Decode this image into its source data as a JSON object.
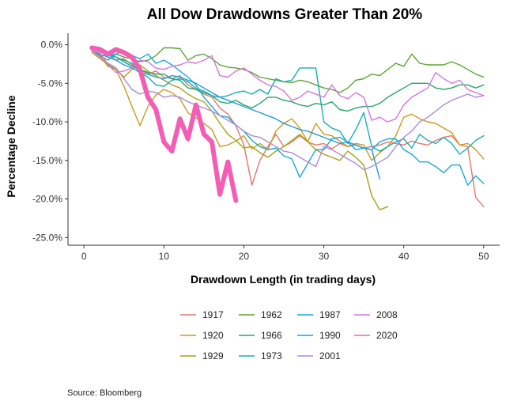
{
  "chart_data": {
    "type": "line",
    "title": "All Dow Drawdowns Greater Than 20%",
    "xlabel": "Drawdown Length (in trading days)",
    "ylabel": "Percentage Decline",
    "xlim": [
      -2,
      52
    ],
    "ylim": [
      -26,
      1.5
    ],
    "x_ticks": [
      0,
      10,
      20,
      30,
      40,
      50
    ],
    "y_ticks": [
      0,
      -5,
      -10,
      -15,
      -20,
      -25
    ],
    "y_tick_labels": [
      "0.0%",
      "-5.0%",
      "-10.0%",
      "-15.0%",
      "-20.0%",
      "-25.0%"
    ],
    "grid": false,
    "legend_position": "bottom",
    "source": "Source:  Bloomberg",
    "series": [
      {
        "name": "1917",
        "color": "#E7766D",
        "x": [
          1,
          2,
          3,
          4,
          5,
          6,
          7,
          8,
          9,
          10,
          11,
          12,
          13,
          14,
          15,
          16,
          17,
          18,
          19,
          20,
          21,
          22,
          23,
          24,
          25,
          26,
          27,
          28,
          29,
          30,
          31,
          32,
          33,
          34,
          35,
          36,
          37,
          38,
          39,
          40,
          41,
          42,
          43,
          44,
          45,
          46,
          47,
          48,
          49,
          50
        ],
        "values": [
          -0.8,
          -1.5,
          -1.2,
          -2.0,
          -1.8,
          -2.6,
          -3.2,
          -3.8,
          -3.4,
          -4.2,
          -4.4,
          -4.0,
          -5.2,
          -5.8,
          -6.4,
          -6.8,
          -8.2,
          -9.0,
          -10.5,
          -13.0,
          -18.2,
          -15.0,
          -13.2,
          -11.6,
          -13.2,
          -12.6,
          -11.8,
          -12.6,
          -13.0,
          -12.8,
          -13.5,
          -12.8,
          -13.2,
          -13.0,
          -13.4,
          -13.2,
          -13.0,
          -12.6,
          -12.8,
          -13.0,
          -12.5,
          -12.8,
          -13.0,
          -12.4,
          -12.0,
          -11.8,
          -13.0,
          -13.2,
          -19.8,
          -21.0
        ]
      },
      {
        "name": "1920",
        "color": "#CF9720",
        "x": [
          1,
          2,
          3,
          4,
          5,
          6,
          7,
          8,
          9,
          10,
          11,
          12,
          13,
          14,
          15,
          16,
          17,
          18,
          19,
          20,
          21,
          22,
          23,
          24,
          25,
          26,
          27,
          28,
          29,
          30,
          31,
          32,
          33,
          34,
          35,
          36,
          37,
          38,
          39,
          40,
          41,
          42,
          43,
          44,
          45,
          46,
          47,
          48,
          49,
          50
        ],
        "values": [
          -1.0,
          -1.8,
          -2.5,
          -3.2,
          -5.4,
          -8.0,
          -10.5,
          -8.0,
          -6.5,
          -5.8,
          -6.2,
          -7.0,
          -8.8,
          -9.5,
          -10.2,
          -11.0,
          -13.2,
          -13.0,
          -12.5,
          -11.8,
          -13.5,
          -12.8,
          -13.6,
          -11.2,
          -10.2,
          -9.6,
          -10.8,
          -12.6,
          -10.2,
          -11.6,
          -11.8,
          -12.5,
          -13.2,
          -12.8,
          -13.0,
          -15.0,
          -14.0,
          -13.2,
          -11.8,
          -9.4,
          -9.0,
          -9.6,
          -10.0,
          -10.2,
          -10.8,
          -11.4,
          -13.0,
          -12.8,
          -13.6,
          -14.8
        ]
      },
      {
        "name": "1929",
        "color": "#A8A114",
        "x": [
          1,
          2,
          3,
          4,
          5,
          6,
          7,
          8,
          9,
          10,
          11,
          12,
          13,
          14,
          15,
          16,
          17,
          18,
          19,
          20,
          21,
          22,
          23,
          24,
          25,
          26,
          27,
          28,
          29,
          30,
          31,
          32,
          33,
          34,
          35,
          36,
          37,
          38
        ],
        "values": [
          -0.6,
          -1.4,
          -2.8,
          -3.2,
          -4.2,
          -3.2,
          -2.6,
          -3.4,
          -4.0,
          -4.6,
          -5.2,
          -5.6,
          -6.4,
          -7.0,
          -7.4,
          -8.6,
          -10.2,
          -11.6,
          -12.4,
          -13.4,
          -13.2,
          -14.0,
          -14.6,
          -13.8,
          -13.2,
          -12.4,
          -11.6,
          -12.6,
          -13.6,
          -14.2,
          -14.6,
          -15.0,
          -13.8,
          -14.6,
          -15.6,
          -19.6,
          -21.4,
          -21.0
        ]
      },
      {
        "name": "1962",
        "color": "#5BA532",
        "x": [
          1,
          2,
          3,
          4,
          5,
          6,
          7,
          8,
          9,
          10,
          11,
          12,
          13,
          14,
          15,
          16,
          17,
          18,
          19,
          20,
          21,
          22,
          23,
          24,
          25,
          26,
          27,
          28,
          29,
          30,
          31,
          32,
          33,
          34,
          35,
          36,
          37,
          38,
          39,
          40,
          41,
          42,
          43,
          44,
          45,
          46,
          47,
          48,
          49,
          50
        ],
        "values": [
          -0.8,
          -1.4,
          -2.0,
          -1.2,
          -1.6,
          -1.8,
          -2.2,
          -2.0,
          -1.4,
          -0.4,
          -0.4,
          -0.5,
          -2.0,
          -1.4,
          -1.2,
          -1.8,
          -2.6,
          -2.9,
          -3.0,
          -3.2,
          -3.6,
          -4.2,
          -4.4,
          -4.6,
          -4.8,
          -4.9,
          -4.6,
          -4.8,
          -5.2,
          -5.6,
          -5.8,
          -6.2,
          -5.6,
          -4.6,
          -4.4,
          -3.8,
          -4.0,
          -3.2,
          -2.4,
          -2.8,
          -1.2,
          -2.4,
          -2.6,
          -2.6,
          -2.6,
          -2.2,
          -2.6,
          -3.2,
          -3.8,
          -4.2
        ]
      },
      {
        "name": "1966",
        "color": "#27A766",
        "x": [
          1,
          2,
          3,
          4,
          5,
          6,
          7,
          8,
          9,
          10,
          11,
          12,
          13,
          14,
          15,
          16,
          17,
          18,
          19,
          20,
          21,
          22,
          23,
          24,
          25,
          26,
          27,
          28,
          29,
          30,
          31,
          32,
          33,
          34,
          35,
          36,
          37,
          38,
          39,
          40,
          41,
          42,
          43,
          44,
          45,
          46,
          47,
          48,
          49,
          50
        ],
        "values": [
          -0.8,
          -0.6,
          -1.2,
          -1.6,
          -2.2,
          -2.8,
          -3.2,
          -3.6,
          -3.8,
          -3.8,
          -4.4,
          -4.6,
          -5.6,
          -5.8,
          -6.2,
          -6.6,
          -7.4,
          -7.6,
          -7.2,
          -7.8,
          -8.2,
          -7.6,
          -6.8,
          -6.8,
          -7.2,
          -7.4,
          -7.8,
          -8.0,
          -7.6,
          -7.8,
          -7.4,
          -8.4,
          -8.6,
          -8.2,
          -8.0,
          -8.0,
          -7.6,
          -6.8,
          -6.2,
          -5.6,
          -5.0,
          -5.0,
          -5.0,
          -5.6,
          -5.8,
          -5.6,
          -5.2,
          -5.2,
          -5.6,
          -5.2
        ]
      },
      {
        "name": "1973",
        "color": "#16AFB5",
        "x": [
          1,
          2,
          3,
          4,
          5,
          6,
          7,
          8,
          9,
          10,
          11,
          12,
          13,
          14,
          15,
          16,
          17,
          18,
          19,
          20,
          21,
          22,
          23,
          24,
          25,
          26,
          27,
          28,
          29,
          30,
          31,
          32,
          33,
          34,
          35,
          36,
          37,
          38,
          39,
          40,
          41,
          42,
          43,
          44,
          45,
          46,
          47,
          48,
          49,
          50
        ],
        "values": [
          -0.6,
          -0.8,
          -1.4,
          -1.6,
          -2.0,
          -2.4,
          -3.6,
          -4.2,
          -5.2,
          -5.4,
          -4.6,
          -4.4,
          -4.8,
          -5.6,
          -6.0,
          -6.6,
          -6.8,
          -6.6,
          -6.2,
          -6.0,
          -6.4,
          -5.8,
          -6.4,
          -4.4,
          -4.8,
          -4.6,
          -3.0,
          -3.0,
          -3.0,
          -10.0,
          -10.8,
          -11.2,
          -12.8,
          -11.0,
          -8.8,
          -13.2,
          -13.8,
          -13.2,
          -12.6,
          -12.2,
          -13.4,
          -11.6,
          -12.4,
          -12.8,
          -12.0,
          -12.8,
          -14.2,
          -13.4,
          -12.4,
          -11.8
        ]
      },
      {
        "name": "1987",
        "color": "#17A8D8",
        "x": [
          1,
          2,
          3,
          4,
          5,
          6,
          7,
          8,
          9,
          10,
          11,
          12,
          13,
          14,
          15,
          16,
          17,
          18,
          19,
          20,
          21,
          22,
          23,
          24,
          25,
          26,
          27,
          28,
          29,
          30,
          31,
          32,
          33,
          34,
          35,
          36,
          37,
          38,
          39,
          40,
          41,
          42,
          43,
          44,
          45,
          46,
          47,
          48,
          49,
          50
        ],
        "values": [
          -0.4,
          -0.8,
          -1.4,
          -1.2,
          -0.8,
          -1.4,
          -1.8,
          -1.2,
          -2.4,
          -2.0,
          -2.6,
          -3.4,
          -4.2,
          -5.2,
          -6.8,
          -8.0,
          -9.2,
          -9.4,
          -10.4,
          -11.2,
          -12.4,
          -13.2,
          -13.6,
          -13.4,
          -14.4,
          -14.8,
          -17.2,
          -15.4,
          -13.6,
          -13.6,
          -12.2,
          -12.0,
          -12.6,
          -13.6,
          -13.4,
          -13.6,
          -12.6,
          -12.2,
          -12.2,
          -13.6,
          -14.2,
          -15.2,
          -15.2,
          -15.8,
          -16.6,
          -15.6,
          -15.6,
          -18.2,
          -17.0,
          -18.0
        ]
      },
      {
        "name": "1990",
        "color": "#1E9BDD",
        "x": [
          1,
          2,
          3,
          4,
          5,
          6,
          7,
          8,
          9,
          10,
          11,
          12,
          13,
          14,
          15,
          16,
          17,
          18,
          19,
          20,
          21,
          22,
          23,
          24,
          25,
          26,
          27,
          28,
          29,
          30,
          31,
          32,
          33,
          34,
          35,
          36,
          37
        ],
        "values": [
          -0.8,
          -1.2,
          -1.6,
          -2.0,
          -2.6,
          -3.0,
          -3.6,
          -3.8,
          -4.2,
          -4.4,
          -4.0,
          -4.2,
          -4.6,
          -5.0,
          -5.6,
          -6.2,
          -6.8,
          -7.2,
          -7.6,
          -8.0,
          -8.4,
          -8.8,
          -9.2,
          -9.6,
          -10.2,
          -10.6,
          -11.0,
          -11.2,
          -11.6,
          -12.0,
          -12.4,
          -12.8,
          -12.6,
          -13.0,
          -13.4,
          -13.6,
          -17.4
        ]
      },
      {
        "name": "2001",
        "color": "#A98BDE",
        "x": [
          1,
          2,
          3,
          4,
          5,
          6,
          7,
          8,
          9,
          10,
          11,
          12,
          13,
          14,
          15,
          16,
          17,
          18,
          19,
          20,
          21,
          22,
          23,
          24,
          25,
          26,
          27,
          28,
          29,
          30,
          31,
          32,
          33,
          34,
          35,
          36,
          37,
          38,
          39,
          40,
          41,
          42,
          43,
          44,
          45,
          46,
          47,
          48,
          49,
          50
        ],
        "values": [
          -0.8,
          -1.6,
          -2.4,
          -3.0,
          -4.4,
          -5.8,
          -6.4,
          -6.0,
          -6.2,
          -6.8,
          -6.6,
          -6.8,
          -7.4,
          -7.8,
          -8.2,
          -8.6,
          -9.2,
          -9.8,
          -10.4,
          -11.2,
          -11.8,
          -12.0,
          -12.6,
          -13.2,
          -13.8,
          -14.0,
          -14.6,
          -15.2,
          -15.8,
          -13.2,
          -13.6,
          -14.2,
          -14.8,
          -15.4,
          -16.2,
          -15.8,
          -15.2,
          -14.6,
          -13.2,
          -12.0,
          -11.2,
          -10.0,
          -9.4,
          -8.6,
          -7.8,
          -7.2,
          -6.8,
          -6.4,
          -6.8,
          -6.6
        ]
      },
      {
        "name": "2008",
        "color": "#D874E0",
        "x": [
          1,
          2,
          3,
          4,
          5,
          6,
          7,
          8,
          9,
          10,
          11,
          12,
          13,
          14,
          15,
          16,
          17,
          18,
          19,
          20,
          21,
          22,
          23,
          24,
          25,
          26,
          27,
          28,
          29,
          30,
          31,
          32,
          33,
          34,
          35,
          36,
          37,
          38,
          39,
          40,
          41,
          42,
          43,
          44,
          45,
          46,
          47,
          48,
          49,
          50
        ],
        "values": [
          -0.8,
          -1.0,
          -2.6,
          -3.6,
          -3.4,
          -3.0,
          -2.0,
          -2.2,
          -3.0,
          -3.2,
          -2.8,
          -2.6,
          -2.2,
          -2.4,
          -2.0,
          -1.4,
          -4.0,
          -4.2,
          -3.4,
          -3.0,
          -3.8,
          -4.6,
          -5.2,
          -5.4,
          -6.0,
          -7.2,
          -6.8,
          -6.0,
          -6.4,
          -6.8,
          -5.2,
          -6.6,
          -7.0,
          -6.2,
          -6.8,
          -9.8,
          -9.4,
          -10.0,
          -9.6,
          -7.8,
          -6.8,
          -6.2,
          -5.6,
          -3.6,
          -4.4,
          -5.0,
          -4.6,
          -5.8,
          -6.2,
          -6.6
        ]
      },
      {
        "name": "2020",
        "color": "#F35EB4",
        "x": [
          1,
          2,
          3,
          4,
          5,
          6,
          7,
          8,
          9,
          10,
          11,
          12,
          13,
          14,
          15,
          16,
          17,
          18,
          19
        ],
        "values": [
          -0.4,
          -0.6,
          -1.2,
          -0.6,
          -1.0,
          -1.6,
          -3.2,
          -6.8,
          -8.4,
          -12.6,
          -13.8,
          -9.6,
          -12.2,
          -7.8,
          -11.6,
          -12.6,
          -19.4,
          -15.2,
          -20.2
        ]
      }
    ]
  }
}
